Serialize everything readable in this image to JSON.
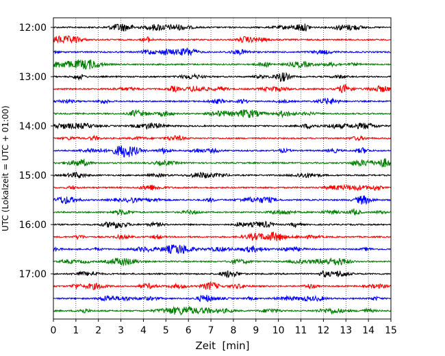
{
  "chart_data": {
    "type": "line",
    "title": "",
    "xlabel": "Zeit  [min]",
    "ylabel": "UTC (Lokalzeit = UTC + 01:00)",
    "xlim": [
      0,
      15
    ],
    "x_ticks": [
      "0",
      "1",
      "2",
      "3",
      "4",
      "5",
      "6",
      "7",
      "8",
      "9",
      "10",
      "11",
      "12",
      "13",
      "14",
      "15"
    ],
    "y_ticks": [
      "12:00",
      "13:00",
      "14:00",
      "15:00",
      "16:00",
      "17:00"
    ],
    "row_interval_minutes": 15,
    "row_start": "12:00",
    "row_count": 24,
    "trace_colors": [
      "#000000",
      "#ff0000",
      "#0000ff",
      "#007f00"
    ],
    "grid": "vertical dotted lines at each minute"
  }
}
